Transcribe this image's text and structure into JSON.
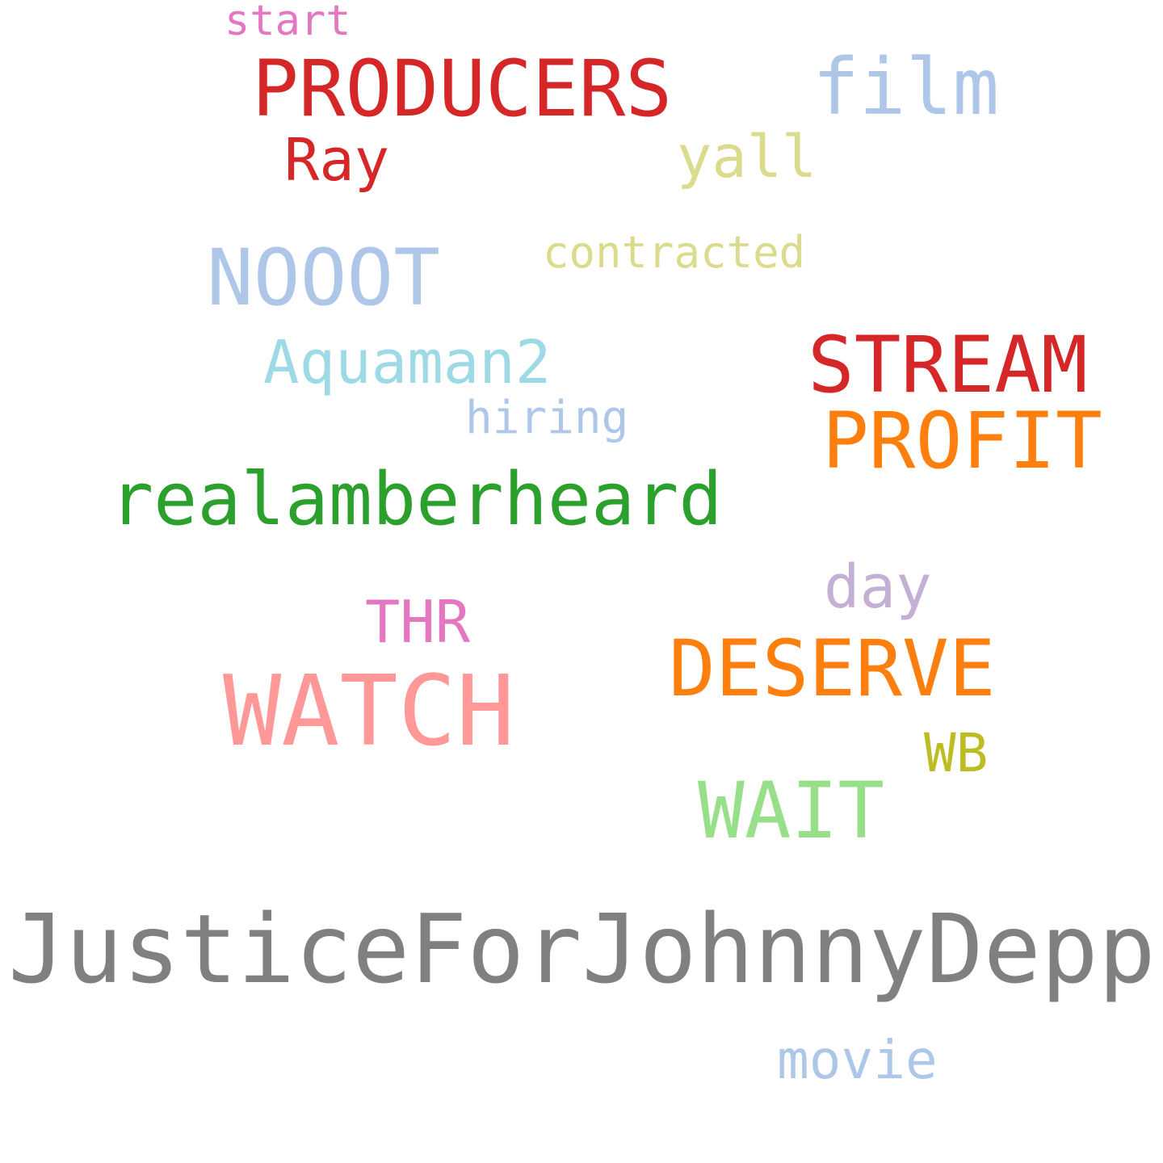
{
  "words": [
    {
      "key": "justice",
      "text": "JusticeForJohnnyDepp",
      "color": "#808080"
    },
    {
      "key": "realamberheard",
      "text": "realamberheard",
      "color": "#2ca02c"
    },
    {
      "key": "watch",
      "text": "WATCH",
      "color": "#ff9896"
    },
    {
      "key": "producers",
      "text": "PRODUCERS",
      "color": "#d62728"
    },
    {
      "key": "stream",
      "text": "STREAM",
      "color": "#d62728"
    },
    {
      "key": "profit",
      "text": "PROFIT",
      "color": "#ff7f0e"
    },
    {
      "key": "deserve",
      "text": "DESERVE",
      "color": "#ff7f0e"
    },
    {
      "key": "nooot",
      "text": "NOOOT",
      "color": "#aec7e8"
    },
    {
      "key": "film",
      "text": "film",
      "color": "#aec7e8"
    },
    {
      "key": "wait",
      "text": "WAIT",
      "color": "#98df8a"
    },
    {
      "key": "aquaman2",
      "text": "Aquaman2",
      "color": "#9edae5"
    },
    {
      "key": "yall",
      "text": "yall",
      "color": "#dbdb8d"
    },
    {
      "key": "contracted",
      "text": "contracted",
      "color": "#dbdb8d"
    },
    {
      "key": "ray",
      "text": "Ray",
      "color": "#d62728"
    },
    {
      "key": "movie",
      "text": "movie",
      "color": "#aec7e8"
    },
    {
      "key": "day",
      "text": "day",
      "color": "#c5b0d5"
    },
    {
      "key": "thr",
      "text": "THR",
      "color": "#e377c2"
    },
    {
      "key": "wb",
      "text": "WB",
      "color": "#bcbd22"
    },
    {
      "key": "hiring",
      "text": "hiring",
      "color": "#aec7e8"
    },
    {
      "key": "start",
      "text": "start",
      "color": "#e377c2"
    }
  ]
}
